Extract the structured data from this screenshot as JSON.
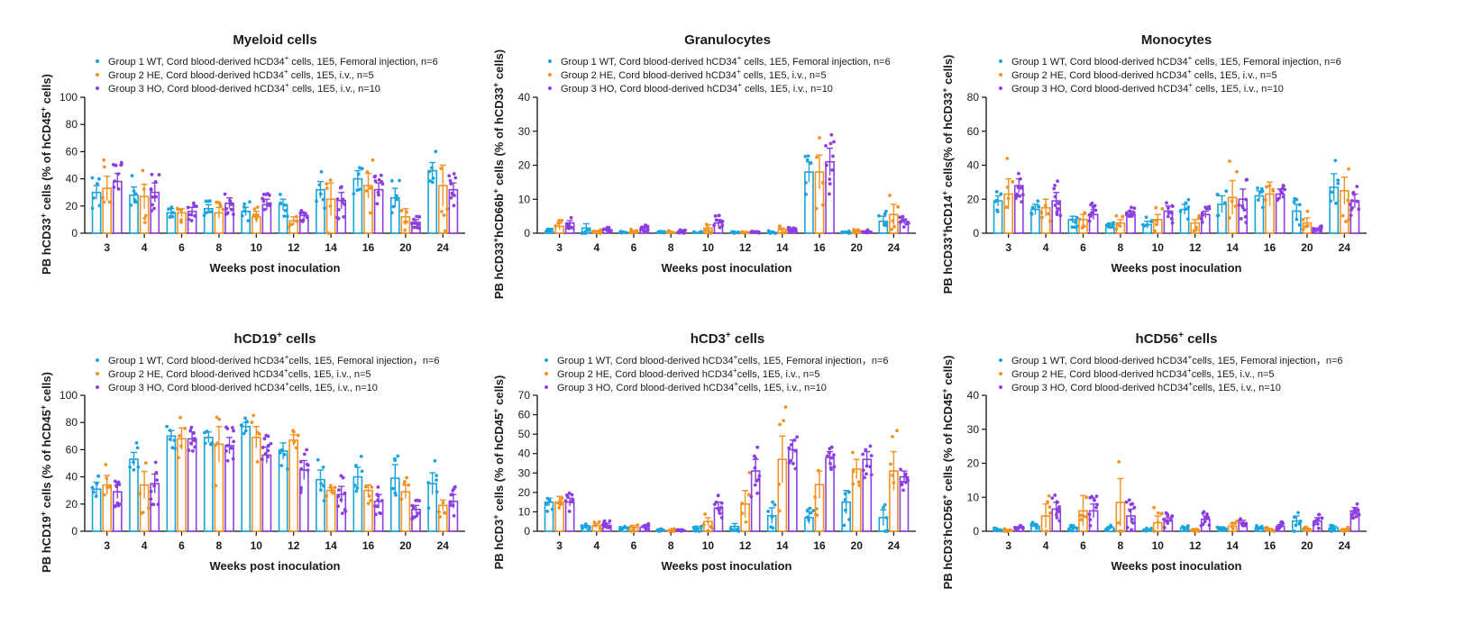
{
  "colors": {
    "group1": "#1aa3dc",
    "group2": "#f39220",
    "group3": "#8b3fe0"
  },
  "legend_common": {
    "g1_pre": "Group 1 WT, Cord blood-derived hCD34",
    "g2_pre": "Group 2 HE, Cord blood-derived hCD34",
    "g3_pre": "Group 3 HO, Cord blood-derived hCD34",
    "sup": "+",
    "g1_post_a": " cells, 1E5, Femoral injection, n=6",
    "g1_post_b": "cells, 1E5, Femoral injection，n=6",
    "g2_post_a": " cells, 1E5, i.v., n=5",
    "g2_post_b": "cells, 1E5, i.v., n=5",
    "g3_post_a": " cells, 1E5, i.v., n=10",
    "g3_post_b": "cells, 1E5, i.v., n=10"
  },
  "xlabel": "Weeks post inoculation",
  "chart_data": [
    {
      "type": "bar",
      "title": "Myeloid cells",
      "title_sup": "",
      "ylabel_parts": [
        "PB hCD33",
        "+",
        " cells (% of hCD45",
        "+",
        " cells)"
      ],
      "ylim": [
        0,
        100
      ],
      "yticks": [
        0,
        20,
        40,
        60,
        80,
        100
      ],
      "categories": [
        "3",
        "4",
        "6",
        "8",
        "10",
        "12",
        "14",
        "16",
        "20",
        "24"
      ],
      "series": [
        {
          "name": "Group 1 WT",
          "values": [
            30,
            28,
            15,
            18,
            16,
            21,
            32,
            40,
            26,
            46
          ],
          "errors": [
            5,
            6,
            3,
            3,
            3,
            4,
            6,
            6,
            7,
            6
          ]
        },
        {
          "name": "Group 2 HE",
          "values": [
            33,
            27,
            15,
            15,
            12,
            9,
            25,
            35,
            12,
            35
          ],
          "errors": [
            9,
            9,
            3,
            4,
            4,
            3,
            12,
            9,
            6,
            15
          ]
        },
        {
          "name": "Group 3 HO",
          "values": [
            38,
            30,
            16,
            22,
            21,
            13,
            24,
            32,
            8,
            32
          ],
          "errors": [
            6,
            7,
            3,
            4,
            4,
            2,
            6,
            5,
            2,
            5
          ]
        }
      ]
    },
    {
      "type": "bar",
      "title": "Granulocytes",
      "title_sup": "",
      "ylabel_parts": [
        "PB hCD33",
        "+",
        "hCD66b",
        "+",
        " cells (% of hCD33",
        "+",
        " cells)"
      ],
      "ylim": [
        0,
        40
      ],
      "yticks": [
        0,
        10,
        20,
        30,
        40
      ],
      "categories": [
        "3",
        "4",
        "6",
        "8",
        "10",
        "12",
        "14",
        "16",
        "20",
        "24"
      ],
      "series": [
        {
          "name": "Group 1 WT",
          "values": [
            0.5,
            1.5,
            0.3,
            0.3,
            0.2,
            0.2,
            0.3,
            18,
            0.3,
            3.5
          ],
          "errors": [
            0.3,
            1.3,
            0.1,
            0.1,
            0.1,
            0.1,
            0.2,
            3,
            0.3,
            1.5
          ]
        },
        {
          "name": "Group 2 HE",
          "values": [
            2,
            0.5,
            0.5,
            0.3,
            1.5,
            0.3,
            1,
            18,
            0.5,
            5.5
          ],
          "errors": [
            1,
            0.3,
            0.3,
            0.2,
            1,
            0.2,
            0.5,
            5,
            0.3,
            3
          ]
        },
        {
          "name": "Group 3 HO",
          "values": [
            3,
            1,
            1.5,
            0.5,
            3,
            0.5,
            1,
            21,
            0.5,
            3.5
          ],
          "errors": [
            0.7,
            0.3,
            0.4,
            0.2,
            1,
            0.2,
            0.4,
            4,
            0.2,
            0.7
          ]
        }
      ]
    },
    {
      "type": "bar",
      "title": "Monocytes",
      "title_sup": "",
      "ylabel_parts": [
        "PB hCD33",
        "+",
        "hCD14",
        "+",
        " cells(% of hCD33",
        "+",
        " cells)"
      ],
      "ylim": [
        0,
        80
      ],
      "yticks": [
        0,
        20,
        40,
        60,
        80
      ],
      "categories": [
        "3",
        "4",
        "6",
        "8",
        "10",
        "12",
        "14",
        "16",
        "20",
        "24"
      ],
      "series": [
        {
          "name": "Group 1 WT",
          "values": [
            19,
            14,
            8,
            5,
            5,
            14,
            17,
            22,
            13,
            27
          ],
          "errors": [
            3,
            3,
            2,
            1,
            2,
            3,
            5,
            3,
            4,
            8
          ]
        },
        {
          "name": "Group 2 HE",
          "values": [
            23,
            15,
            8,
            6,
            8,
            6,
            21,
            23,
            6,
            25
          ],
          "errors": [
            9,
            5,
            3,
            2,
            3,
            2,
            10,
            7,
            3,
            8
          ]
        },
        {
          "name": "Group 3 HO",
          "values": [
            28,
            19,
            11,
            11,
            13,
            11,
            20,
            23,
            2,
            19
          ],
          "errors": [
            4,
            5,
            3,
            2,
            3,
            2,
            6,
            3,
            1,
            4
          ]
        }
      ]
    },
    {
      "type": "bar",
      "title": "hCD19",
      "title_sup": "+",
      "title_post": " cells",
      "ylabel_parts": [
        "PB hCD19",
        "+",
        " cells  (% of hCD45",
        "+",
        " cells)"
      ],
      "ylim": [
        0,
        100
      ],
      "yticks": [
        0,
        20,
        40,
        60,
        80,
        100
      ],
      "categories": [
        "3",
        "4",
        "6",
        "8",
        "10",
        "12",
        "14",
        "16",
        "20",
        "24"
      ],
      "series": [
        {
          "name": "Group 1 WT",
          "values": [
            31,
            53,
            70,
            69,
            77,
            59,
            38,
            40,
            39,
            35
          ],
          "errors": [
            5,
            5,
            4,
            4,
            3,
            6,
            7,
            7,
            10,
            8
          ]
        },
        {
          "name": "Group 2 HE",
          "values": [
            34,
            34,
            68,
            64,
            69,
            67,
            30,
            30,
            29,
            19
          ],
          "errors": [
            7,
            10,
            8,
            13,
            8,
            4,
            2,
            4,
            5,
            4
          ]
        },
        {
          "name": "Group 3 HO",
          "values": [
            29,
            35,
            68,
            63,
            56,
            45,
            27,
            22,
            16,
            22
          ],
          "errors": [
            5,
            7,
            5,
            6,
            6,
            7,
            6,
            5,
            3,
            5
          ]
        }
      ]
    },
    {
      "type": "bar",
      "title": "hCD3",
      "title_sup": "+",
      "title_post": " cells",
      "ylabel_parts": [
        "PB hCD3",
        "+",
        " cells (% of hCD45",
        "+",
        " cells)"
      ],
      "ylim": [
        0,
        70
      ],
      "yticks": [
        0,
        10,
        20,
        30,
        40,
        50,
        60,
        70
      ],
      "categories": [
        "3",
        "4",
        "6",
        "8",
        "10",
        "12",
        "14",
        "16",
        "20",
        "24"
      ],
      "series": [
        {
          "name": "Group 1 WT",
          "values": [
            15,
            2,
            1.5,
            0.5,
            1.5,
            2.5,
            8,
            7,
            15,
            7
          ],
          "errors": [
            2,
            1,
            0.5,
            0.3,
            1,
            1.5,
            4,
            3,
            6,
            4
          ]
        },
        {
          "name": "Group 2 HE",
          "values": [
            15,
            3,
            2,
            0.5,
            5,
            14,
            37,
            24,
            32,
            31
          ],
          "errors": [
            3,
            1,
            1,
            0.3,
            2,
            7,
            12,
            7,
            5,
            10
          ]
        },
        {
          "name": "Group 3 HO",
          "values": [
            15,
            3,
            2,
            0.5,
            12,
            31,
            42,
            38,
            37,
            28
          ],
          "errors": [
            2,
            1,
            0.8,
            0.2,
            3,
            6,
            5,
            3,
            4,
            3
          ]
        }
      ]
    },
    {
      "type": "bar",
      "title": "hCD56",
      "title_sup": "+",
      "title_post": " cells",
      "ylabel_parts": [
        "PB hCD3",
        "-",
        "hCD56",
        "+",
        " cells (% of hCD45",
        "+",
        " cells)"
      ],
      "ylim": [
        0,
        40
      ],
      "yticks": [
        0,
        10,
        20,
        30,
        40
      ],
      "categories": [
        "3",
        "4",
        "6",
        "8",
        "10",
        "12",
        "14",
        "16",
        "20",
        "24"
      ],
      "series": [
        {
          "name": "Group 1 WT",
          "values": [
            0.5,
            1.5,
            1,
            1,
            0.5,
            1,
            1,
            1,
            3,
            1
          ],
          "errors": [
            0.2,
            0.5,
            0.4,
            0.4,
            0.2,
            0.3,
            0.3,
            0.3,
            1.5,
            0.5
          ]
        },
        {
          "name": "Group 2 HE",
          "values": [
            0.3,
            4.5,
            6,
            8.5,
            2.5,
            0.5,
            1.5,
            0.5,
            0.5,
            0.5
          ],
          "errors": [
            0.2,
            3.5,
            4.5,
            7,
            2,
            0.3,
            0.7,
            0.3,
            0.3,
            0.3
          ]
        },
        {
          "name": "Group 3 HO",
          "values": [
            1,
            6.5,
            6,
            4.5,
            3,
            3.5,
            2.5,
            1.5,
            3,
            6
          ],
          "errors": [
            0.3,
            2,
            2,
            2,
            1,
            1,
            0.7,
            0.5,
            1,
            1
          ]
        }
      ]
    }
  ]
}
